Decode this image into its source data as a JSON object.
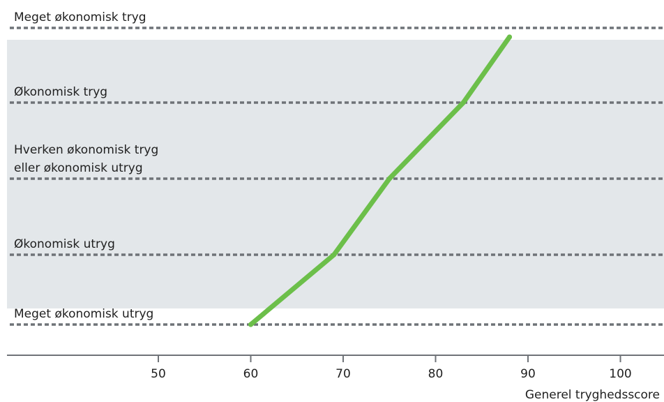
{
  "chart_data": {
    "type": "line",
    "xlabel": "Generel tryghedsscore",
    "ylabel": "",
    "xlim": [
      40,
      105
    ],
    "x_ticks": [
      50,
      60,
      70,
      80,
      90,
      100
    ],
    "y_categories": [
      {
        "lines": [
          "Meget økonomisk tryg"
        ]
      },
      {
        "lines": [
          "Økonomisk tryg"
        ]
      },
      {
        "lines": [
          "Hverken økonomisk tryg",
          "eller økonomisk utryg"
        ]
      },
      {
        "lines": [
          "Økonomisk utryg"
        ]
      },
      {
        "lines": [
          "Meget økonomisk utryg"
        ]
      }
    ],
    "series": [
      {
        "points": [
          {
            "y": "Meget økonomisk utryg",
            "x": 60
          },
          {
            "y": "Økonomisk utryg",
            "x": 69
          },
          {
            "y": "Hverken økonomisk tryg eller økonomisk utryg",
            "x": 75
          },
          {
            "y": "Økonomisk tryg",
            "x": 83
          },
          {
            "y": "Meget økonomisk tryg",
            "x": 88
          }
        ]
      }
    ],
    "colors": {
      "line": "#6cbf4a",
      "band": "#e3e7ea",
      "gridline": "#6f7378",
      "axis": "#6f7378"
    },
    "grid": "dashed horizontal lines at each category",
    "band": "shaded band spanning the inner categories"
  }
}
